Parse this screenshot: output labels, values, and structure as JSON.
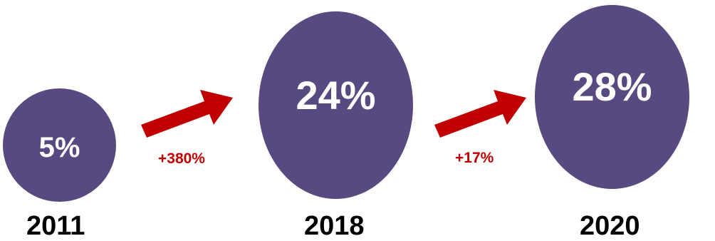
{
  "stages": [
    {
      "year": "2011",
      "value": "5%"
    },
    {
      "year": "2018",
      "value": "24%"
    },
    {
      "year": "2020",
      "value": "28%"
    }
  ],
  "changes": [
    {
      "label": "+380%"
    },
    {
      "label": "+17%"
    }
  ],
  "colors": {
    "circle": "#584A80",
    "arrow": "#C00000",
    "change_text": "#C00000",
    "year_text": "#000000"
  }
}
